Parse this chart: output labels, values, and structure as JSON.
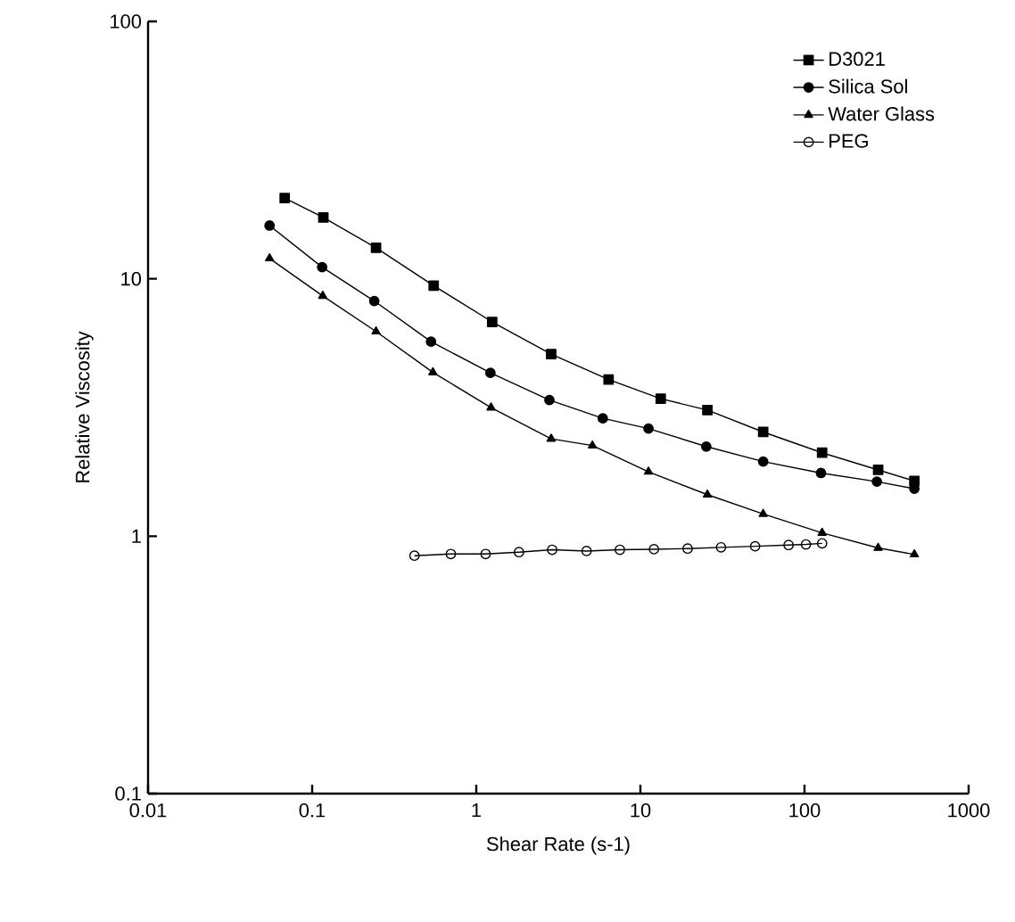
{
  "chart_data": {
    "type": "line",
    "xlabel": "Shear Rate (s-1)",
    "ylabel": "Relative Viscosity",
    "log": "xy",
    "grid": false,
    "legend": "top right",
    "xlim": [
      0.01,
      1000
    ],
    "ylim": [
      0.1,
      100
    ],
    "xticks": [
      0.01,
      0.1,
      1,
      10,
      100,
      1000
    ],
    "yticks": [
      0.1,
      1,
      10,
      100
    ],
    "series": [
      {
        "name": "D3021",
        "color": "#000000",
        "marker": "square",
        "x": [
          0.068,
          0.117,
          0.245,
          0.55,
          1.25,
          2.86,
          6.4,
          13.3,
          25.6,
          56,
          128,
          281,
          467
        ],
        "values": [
          20.6,
          17.3,
          13.2,
          9.4,
          6.8,
          5.1,
          4.06,
          3.42,
          3.09,
          2.54,
          2.11,
          1.81,
          1.64
        ]
      },
      {
        "name": "Silica Sol",
        "color": "#000000",
        "marker": "circle",
        "x": [
          0.055,
          0.115,
          0.239,
          0.53,
          1.22,
          2.79,
          5.9,
          11.2,
          25.2,
          56,
          126,
          276,
          467
        ],
        "values": [
          16.1,
          11.1,
          8.2,
          5.7,
          4.31,
          3.38,
          2.87,
          2.62,
          2.23,
          1.95,
          1.76,
          1.63,
          1.53
        ]
      },
      {
        "name": "Water Glass",
        "color": "#000000",
        "marker": "triangle",
        "x": [
          0.055,
          0.116,
          0.245,
          0.544,
          1.23,
          2.86,
          5.1,
          11.2,
          25.6,
          56,
          128,
          281,
          467
        ],
        "values": [
          12.0,
          8.58,
          6.24,
          4.33,
          3.16,
          2.39,
          2.25,
          1.78,
          1.45,
          1.22,
          1.03,
          0.9,
          0.85
        ]
      },
      {
        "name": "PEG",
        "color": "#000000",
        "marker": "open circle",
        "x": [
          0.42,
          0.7,
          1.14,
          1.82,
          2.9,
          4.7,
          7.5,
          12.1,
          19.4,
          31,
          50,
          80,
          102,
          128
        ],
        "values": [
          0.84,
          0.853,
          0.853,
          0.867,
          0.886,
          0.876,
          0.886,
          0.89,
          0.895,
          0.905,
          0.914,
          0.924,
          0.929,
          0.938
        ]
      }
    ]
  }
}
